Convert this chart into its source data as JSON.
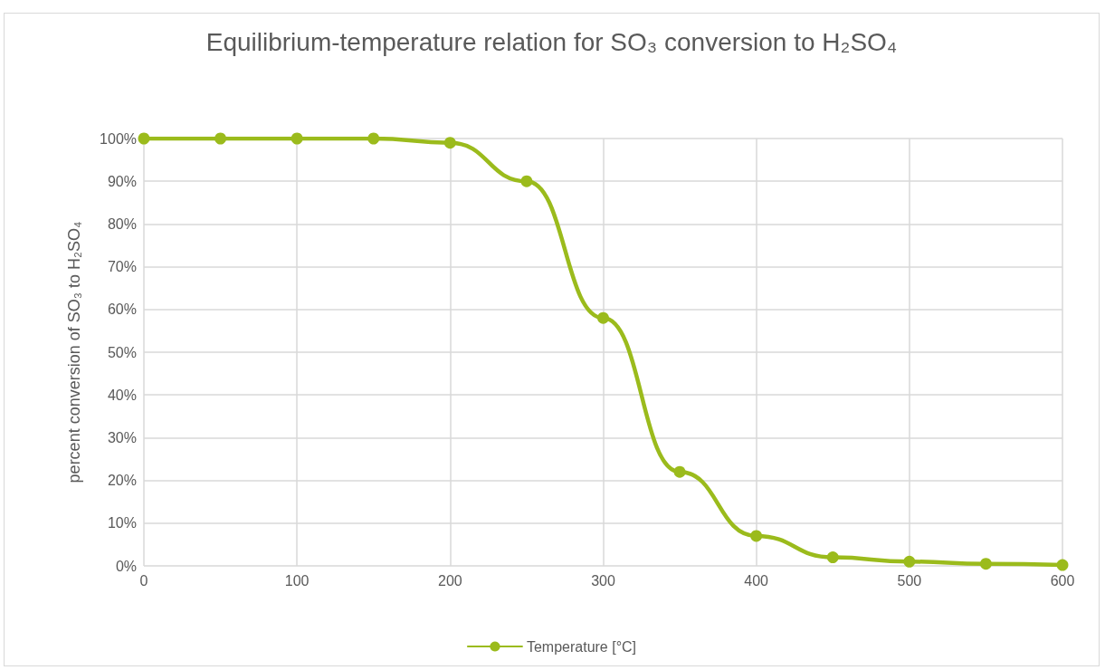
{
  "chart_data": {
    "type": "line",
    "title": "Equilibrium-temperature relation for SO₃ conversion to H₂SO₄",
    "ylabel": "percent conversion of SO₃ to H₂SO₄",
    "x": [
      0,
      50,
      100,
      150,
      200,
      250,
      300,
      350,
      400,
      450,
      500,
      550,
      600
    ],
    "series": [
      {
        "name": "Temperature [°C]",
        "color": "#9bbb1c",
        "values": [
          100,
          100,
          100,
          100,
          99,
          90,
          58,
          22,
          7,
          2,
          1,
          0.5,
          0.2
        ]
      }
    ],
    "xlim": [
      0,
      600
    ],
    "xticks": [
      0,
      100,
      200,
      300,
      400,
      500,
      600
    ],
    "ylim": [
      0,
      100
    ],
    "yticks": [
      {
        "value": 0,
        "label": "0%"
      },
      {
        "value": 10,
        "label": "10%"
      },
      {
        "value": 20,
        "label": "20%"
      },
      {
        "value": 30,
        "label": "30%"
      },
      {
        "value": 40,
        "label": "40%"
      },
      {
        "value": 50,
        "label": "50%"
      },
      {
        "value": 60,
        "label": "60%"
      },
      {
        "value": 70,
        "label": "70%"
      },
      {
        "value": 80,
        "label": "80%"
      },
      {
        "value": 90,
        "label": "90%"
      },
      {
        "value": 100,
        "label": "100%"
      }
    ],
    "grid": true,
    "legend": "bottom",
    "marker": "circle",
    "line_style": "solid"
  }
}
